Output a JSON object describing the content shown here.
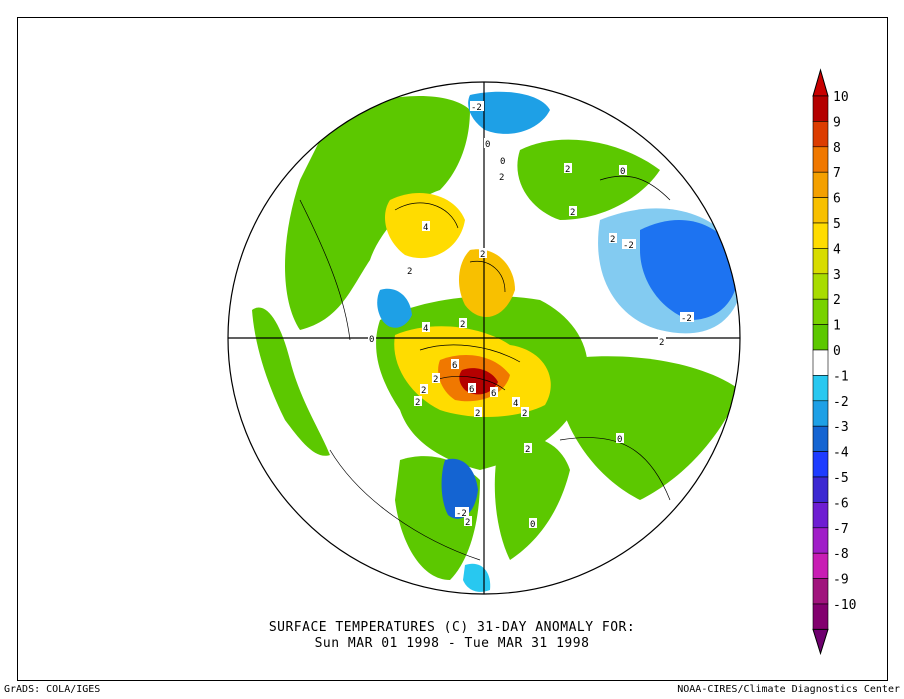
{
  "title": {
    "line1": "SURFACE TEMPERATURES (C)   31-DAY ANOMALY FOR:",
    "line2": "Sun MAR 01 1998 - Tue MAR 31 1998"
  },
  "credits": {
    "left": "GrADS: COLA/IGES",
    "right": "NOAA-CIRES/Climate Diagnostics Center"
  },
  "colorbar": {
    "levels": [
      {
        "label": "10",
        "color": "#b40000"
      },
      {
        "label": "9",
        "color": "#dc3c00"
      },
      {
        "label": "8",
        "color": "#f07800"
      },
      {
        "label": "7",
        "color": "#f4a000"
      },
      {
        "label": "6",
        "color": "#f8c000"
      },
      {
        "label": "5",
        "color": "#ffdc00"
      },
      {
        "label": "4",
        "color": "#d8dc00"
      },
      {
        "label": "3",
        "color": "#a8dc00"
      },
      {
        "label": "2",
        "color": "#78d200"
      },
      {
        "label": "1",
        "color": "#5cc800"
      },
      {
        "label": "0",
        "color": "#ffffff"
      },
      {
        "label": "-1",
        "color": "#28c8f0"
      },
      {
        "label": "-2",
        "color": "#1ea0e6"
      },
      {
        "label": "-3",
        "color": "#1464d2"
      },
      {
        "label": "-4",
        "color": "#1e3cff"
      },
      {
        "label": "-5",
        "color": "#3c28d2"
      },
      {
        "label": "-6",
        "color": "#6e1ed2"
      },
      {
        "label": "-7",
        "color": "#a01ec8"
      },
      {
        "label": "-8",
        "color": "#c81eb4"
      },
      {
        "label": "-9",
        "color": "#a0147d"
      },
      {
        "label": "-10",
        "color": "#82006e"
      }
    ],
    "top_color": "#c80000",
    "bottom_color": "#6e006e"
  },
  "contour_labels": [
    "-2",
    "0",
    "0",
    "2",
    "0",
    "2",
    "2",
    "-2",
    "4",
    "2",
    "2",
    "2",
    "4",
    "-2",
    "2",
    "6",
    "0",
    "2",
    "2",
    "6",
    "6",
    "2",
    "4",
    "2",
    "2",
    "2",
    "2",
    "-2",
    "0",
    "0",
    "2"
  ]
}
